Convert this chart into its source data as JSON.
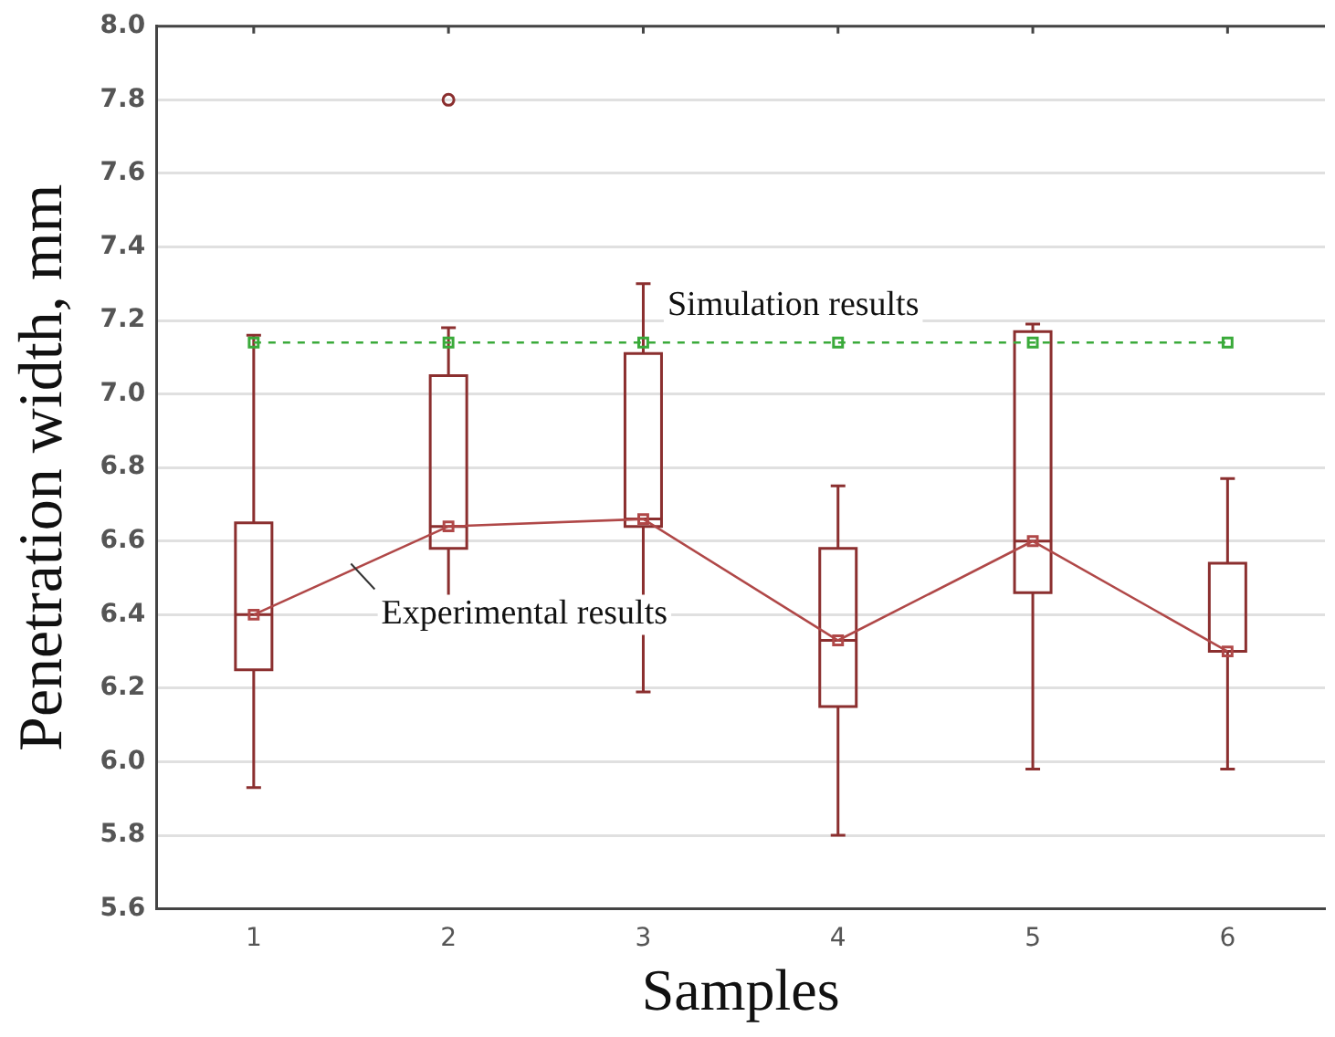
{
  "chart_data": {
    "type": "box",
    "xlabel": "Samples",
    "ylabel": "Penetration width, mm",
    "categories": [
      "1",
      "2",
      "3",
      "4",
      "5",
      "6"
    ],
    "ylim": [
      5.6,
      8.0
    ],
    "yticks": [
      5.6,
      5.8,
      {
        "value": 6,
        "label": "6.0"
      },
      6.2,
      6.4,
      6.6,
      6.8,
      {
        "value": 7,
        "label": "7.0"
      },
      7.2,
      7.4,
      7.6,
      7.8,
      {
        "value": 8,
        "label": "8.0"
      }
    ],
    "grid": "y",
    "legend": false,
    "series": [
      {
        "color": "#8b2f2f",
        "boxes": [
          {
            "low": 5.93,
            "q1": 6.25,
            "median": 6.4,
            "q3": 6.65,
            "high": 7.16
          },
          {
            "low": 6.37,
            "q1": 6.58,
            "median": 6.64,
            "q3": 7.05,
            "high": 7.18,
            "outliers": [
              7.8
            ]
          },
          {
            "low": 6.19,
            "q1": 6.64,
            "median": 6.66,
            "q3": 7.11,
            "high": 7.3
          },
          {
            "low": 5.8,
            "q1": 6.15,
            "median": 6.33,
            "q3": 6.58,
            "high": 6.75
          },
          {
            "low": 5.98,
            "q1": 6.46,
            "median": 6.6,
            "q3": 7.17,
            "high": 7.19
          },
          {
            "low": 5.98,
            "q1": 6.3,
            "median": 6.3,
            "q3": 6.54,
            "high": 6.77
          }
        ]
      },
      {
        "type": "line",
        "name": "Experimental results",
        "color": "#b04848",
        "marker": "square",
        "line_style": "solid",
        "values": [
          6.4,
          6.64,
          6.66,
          6.33,
          6.6,
          6.3
        ]
      },
      {
        "type": "line",
        "name": "Simulation results",
        "color": "#3aaa3a",
        "marker": "square",
        "line_style": "dashed",
        "values": [
          7.14,
          7.14,
          7.14,
          7.14,
          7.14,
          7.14
        ]
      }
    ]
  }
}
